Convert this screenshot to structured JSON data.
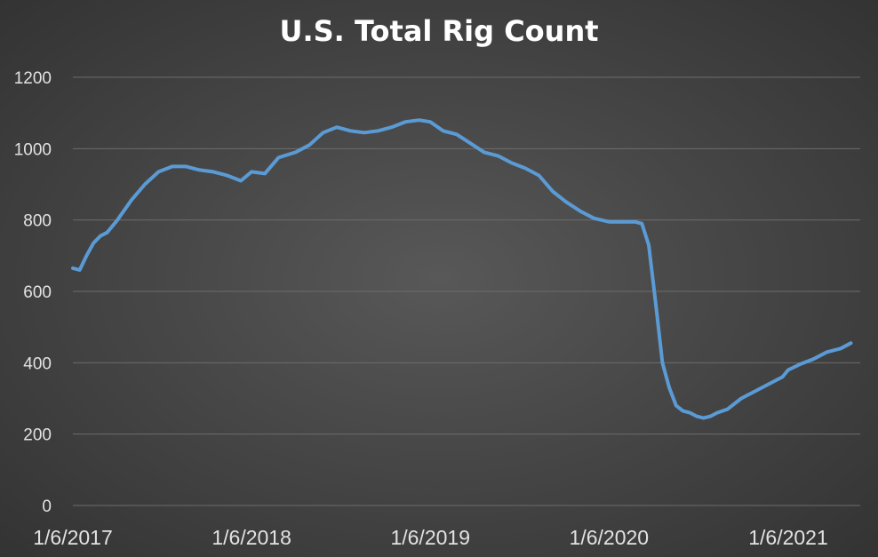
{
  "chart_data": {
    "type": "line",
    "title": "U.S. Total Rig Count",
    "xlabel": "",
    "ylabel": "",
    "ylim": [
      0,
      1200
    ],
    "yticks": [
      "0",
      "200",
      "400",
      "600",
      "800",
      "1000",
      "1200"
    ],
    "xticks": [
      "1/6/2017",
      "1/6/2018",
      "1/6/2019",
      "1/6/2020",
      "1/6/2021"
    ],
    "xlim": [
      "2017-01-06",
      "2021-05-14"
    ],
    "grid": true,
    "legend": "none",
    "line_color": "#5b9bd5",
    "series": [
      {
        "x": [
          "2017-01-06",
          "2017-01-20",
          "2017-02-03",
          "2017-02-17",
          "2017-03-03",
          "2017-03-17",
          "2017-04-07",
          "2017-05-05",
          "2017-06-02",
          "2017-06-30",
          "2017-07-28",
          "2017-08-25",
          "2017-09-22",
          "2017-10-20",
          "2017-11-17",
          "2017-12-15",
          "2018-01-06",
          "2018-02-02",
          "2018-03-02",
          "2018-04-06",
          "2018-05-04",
          "2018-06-01",
          "2018-06-29",
          "2018-07-27",
          "2018-08-24",
          "2018-09-21",
          "2018-10-19",
          "2018-11-16",
          "2018-12-14",
          "2019-01-06",
          "2019-02-01",
          "2019-03-01",
          "2019-03-29",
          "2019-04-26",
          "2019-05-24",
          "2019-06-21",
          "2019-07-19",
          "2019-08-16",
          "2019-09-13",
          "2019-10-11",
          "2019-11-08",
          "2019-12-06",
          "2020-01-06",
          "2020-01-31",
          "2020-02-28",
          "2020-03-13",
          "2020-03-27",
          "2020-04-10",
          "2020-04-24",
          "2020-05-08",
          "2020-05-22",
          "2020-06-05",
          "2020-06-19",
          "2020-07-03",
          "2020-07-17",
          "2020-07-31",
          "2020-08-14",
          "2020-09-04",
          "2020-10-02",
          "2020-10-30",
          "2020-11-27",
          "2020-12-25",
          "2021-01-06",
          "2021-01-29",
          "2021-02-26",
          "2021-03-26",
          "2021-04-23",
          "2021-05-14"
        ],
        "values": [
          665,
          660,
          700,
          735,
          755,
          765,
          800,
          855,
          900,
          935,
          950,
          950,
          940,
          935,
          925,
          910,
          935,
          930,
          975,
          990,
          1010,
          1045,
          1060,
          1050,
          1045,
          1050,
          1060,
          1075,
          1080,
          1075,
          1050,
          1040,
          1015,
          990,
          980,
          960,
          945,
          925,
          880,
          850,
          825,
          805,
          795,
          795,
          795,
          790,
          730,
          570,
          400,
          330,
          280,
          265,
          260,
          250,
          245,
          250,
          260,
          270,
          300,
          320,
          340,
          360,
          380,
          395,
          410,
          430,
          440,
          455
        ]
      }
    ]
  }
}
